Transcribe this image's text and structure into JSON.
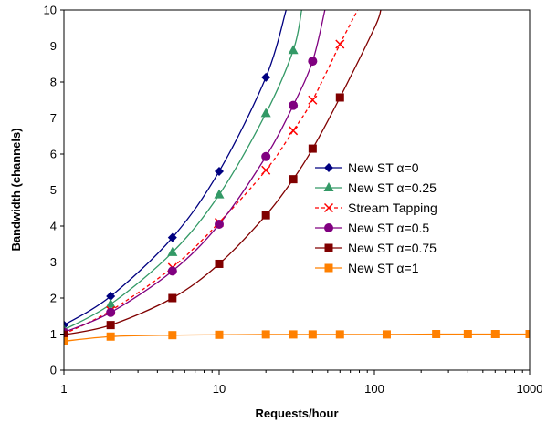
{
  "chart_data": {
    "type": "line",
    "title": "",
    "xlabel": "Requests/hour",
    "ylabel": "Bandwidth (channels)",
    "xscale": "log",
    "xlim": [
      1,
      1000
    ],
    "ylim": [
      0,
      10
    ],
    "x_ticks": [
      "1",
      "10",
      "100",
      "1000"
    ],
    "y_ticks": [
      "0",
      "1",
      "2",
      "3",
      "4",
      "5",
      "6",
      "7",
      "8",
      "9",
      "10"
    ],
    "grid": false,
    "legend_position": "right",
    "series": [
      {
        "name": "New ST α=0",
        "color": "#000080",
        "marker": "diamond",
        "dashed": false,
        "markers_x": [
          1,
          2,
          5,
          10,
          20
        ],
        "markers_y": [
          1.25,
          2.05,
          3.68,
          5.52,
          8.13
        ],
        "curve_x": [
          1,
          2,
          5,
          10,
          20,
          27
        ],
        "curve_y": [
          1.25,
          2.05,
          3.68,
          5.52,
          8.13,
          10.0
        ]
      },
      {
        "name": "New ST α=0.25",
        "color": "#339966",
        "marker": "triangle",
        "dashed": false,
        "markers_x": [
          1,
          2,
          5,
          10,
          20,
          30
        ],
        "markers_y": [
          1.12,
          1.83,
          3.27,
          4.87,
          7.13,
          8.88
        ],
        "curve_x": [
          1,
          2,
          5,
          10,
          20,
          30,
          34
        ],
        "curve_y": [
          1.12,
          1.83,
          3.27,
          4.87,
          7.13,
          8.88,
          10.0
        ]
      },
      {
        "name": "Stream Tapping",
        "color": "#ff0000",
        "marker": "x",
        "dashed": true,
        "markers_x": [
          1,
          2,
          5,
          10,
          20,
          30,
          40,
          60
        ],
        "markers_y": [
          1.0,
          1.65,
          2.85,
          4.1,
          5.55,
          6.65,
          7.5,
          9.05
        ],
        "curve_x": [
          1,
          2,
          5,
          10,
          20,
          30,
          40,
          60,
          78
        ],
        "curve_y": [
          1.0,
          1.65,
          2.85,
          4.1,
          5.55,
          6.65,
          7.5,
          9.05,
          10.0
        ]
      },
      {
        "name": "New ST α=0.5",
        "color": "#800080",
        "marker": "circle",
        "dashed": false,
        "markers_x": [
          1,
          2,
          5,
          10,
          20,
          30,
          40
        ],
        "markers_y": [
          1.05,
          1.6,
          2.75,
          4.05,
          5.93,
          7.35,
          8.58
        ],
        "curve_x": [
          1,
          2,
          5,
          10,
          20,
          30,
          40,
          48
        ],
        "curve_y": [
          1.05,
          1.6,
          2.75,
          4.05,
          5.93,
          7.35,
          8.58,
          10.0
        ]
      },
      {
        "name": "New ST α=0.75",
        "color": "#800000",
        "marker": "square",
        "dashed": false,
        "markers_x": [
          1,
          2,
          5,
          10,
          20,
          30,
          40,
          60
        ],
        "markers_y": [
          0.98,
          1.25,
          2.0,
          2.95,
          4.3,
          5.3,
          6.15,
          7.57
        ],
        "curve_x": [
          1,
          2,
          5,
          10,
          20,
          30,
          40,
          60,
          100,
          110
        ],
        "curve_y": [
          0.98,
          1.25,
          2.0,
          2.95,
          4.3,
          5.3,
          6.15,
          7.57,
          9.5,
          10.0
        ]
      },
      {
        "name": "New ST α=1",
        "color": "#ff8000",
        "marker": "square",
        "dashed": false,
        "markers_x": [
          1,
          2,
          5,
          10,
          20,
          30,
          40,
          60,
          120,
          250,
          400,
          600,
          1000
        ],
        "markers_y": [
          0.8,
          0.93,
          0.97,
          0.98,
          0.99,
          0.99,
          0.99,
          0.99,
          0.99,
          1.0,
          1.0,
          1.0,
          1.0
        ],
        "curve_x": [
          1,
          2,
          5,
          10,
          20,
          30,
          40,
          60,
          120,
          250,
          400,
          600,
          1000
        ],
        "curve_y": [
          0.8,
          0.93,
          0.97,
          0.98,
          0.99,
          0.99,
          0.99,
          0.99,
          0.99,
          1.0,
          1.0,
          1.0,
          1.0
        ]
      }
    ]
  }
}
